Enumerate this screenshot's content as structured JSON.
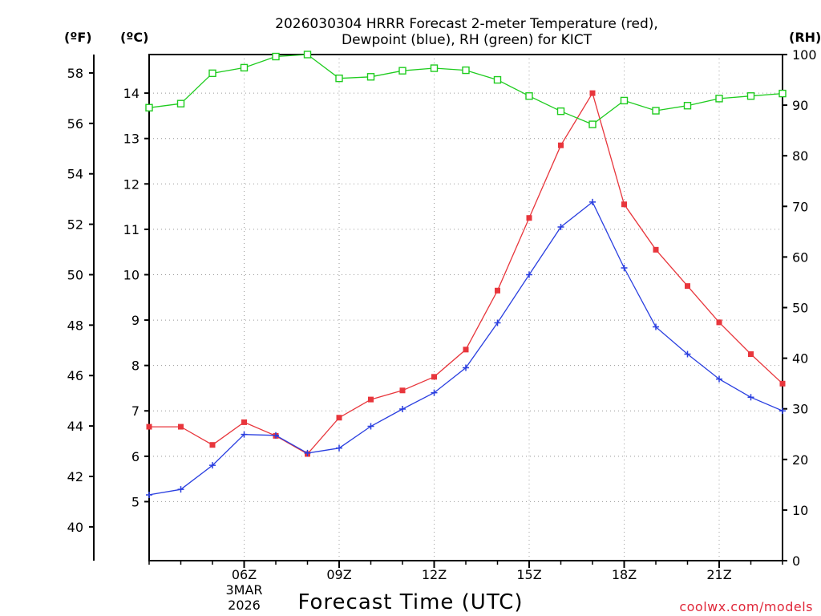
{
  "chart_data": {
    "type": "line",
    "title_line1": "2026030304 HRRR Forecast 2-meter Temperature (red),",
    "title_line2": "Dewpoint (blue), RH (green) for KICT",
    "unit_left_outer": "(ºF)",
    "unit_left_inner": "(ºC)",
    "unit_right": "(RH)",
    "xlabel": "Forecast Time (UTC)",
    "credit": "coolwx.com/models",
    "x_hours": [
      3,
      4,
      5,
      6,
      7,
      8,
      9,
      10,
      11,
      12,
      13,
      14,
      15,
      16,
      17,
      18,
      19,
      20,
      21,
      22,
      23
    ],
    "x_range": [
      3,
      23
    ],
    "x_ticks": [
      {
        "hour": 6,
        "label": "06Z",
        "sub1": "3MAR",
        "sub2": "2026"
      },
      {
        "hour": 9,
        "label": "09Z"
      },
      {
        "hour": 12,
        "label": "12Z"
      },
      {
        "hour": 15,
        "label": "15Z"
      },
      {
        "hour": 18,
        "label": "18Z"
      },
      {
        "hour": 21,
        "label": "21Z"
      }
    ],
    "celsius_range": [
      3.7,
      14.85
    ],
    "celsius_ticks": [
      "5",
      "6",
      "7",
      "8",
      "9",
      "10",
      "11",
      "12",
      "13",
      "14"
    ],
    "fahrenheit_ticks": [
      "40",
      "42",
      "44",
      "46",
      "48",
      "50",
      "52",
      "54",
      "56",
      "58"
    ],
    "rh_range": [
      0,
      100
    ],
    "rh_ticks": [
      "0",
      "10",
      "20",
      "30",
      "40",
      "50",
      "60",
      "70",
      "80",
      "90",
      "100"
    ],
    "series": [
      {
        "name": "Temperature",
        "unit": "C",
        "color": "#e8363c",
        "marker": "filled-square",
        "values": [
          6.65,
          6.65,
          6.25,
          6.75,
          6.45,
          6.05,
          6.85,
          7.25,
          7.45,
          7.75,
          8.35,
          9.65,
          11.25,
          12.85,
          14.0,
          11.55,
          10.55,
          9.75,
          8.95,
          8.25,
          7.6
        ]
      },
      {
        "name": "Dewpoint",
        "unit": "C",
        "color": "#2a3fe0",
        "marker": "plus",
        "values": [
          5.15,
          5.27,
          5.8,
          6.48,
          6.46,
          6.07,
          6.18,
          6.66,
          7.04,
          7.4,
          7.95,
          8.94,
          10.0,
          11.05,
          11.6,
          10.15,
          8.85,
          8.25,
          7.7,
          7.3,
          7.0
        ]
      },
      {
        "name": "RH",
        "unit": "%",
        "color": "#1fcc1f",
        "marker": "open-square",
        "values": [
          89.5,
          90.3,
          96.3,
          97.4,
          99.6,
          100.0,
          95.3,
          95.6,
          96.8,
          97.3,
          96.9,
          95.0,
          91.8,
          88.8,
          86.2,
          90.9,
          88.9,
          89.9,
          91.3,
          91.8,
          92.3
        ]
      }
    ]
  }
}
